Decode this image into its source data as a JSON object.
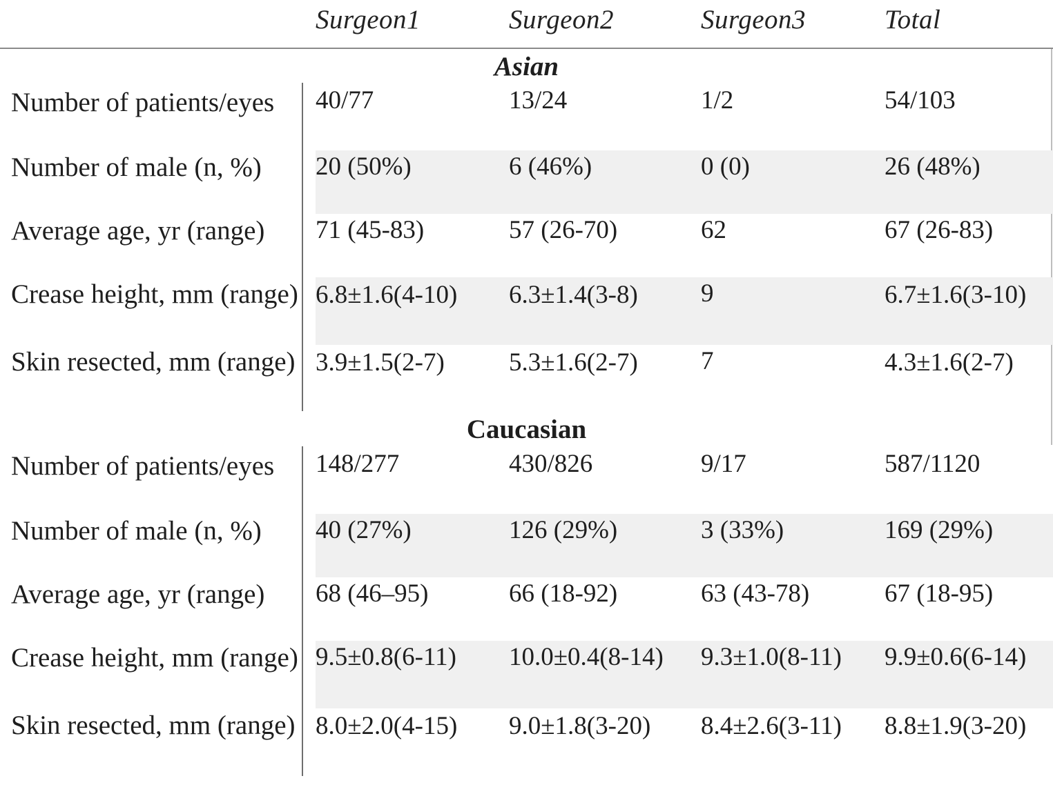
{
  "columns": [
    "Surgeon1",
    "Surgeon2",
    "Surgeon3",
    "Total"
  ],
  "groups": [
    {
      "title": "Asian",
      "rows": [
        {
          "label": "Number of patients/eyes",
          "values": [
            "40/77",
            "13/24",
            "1/2",
            "54/103"
          ]
        },
        {
          "label": "Number of male (n, %)",
          "values": [
            "20 (50%)",
            "6 (46%)",
            "0 (0)",
            "26 (48%)"
          ]
        },
        {
          "label": "Average age, yr (range)",
          "values": [
            "71 (45-83)",
            "57 (26-70)",
            "62",
            "67 (26-83)"
          ]
        },
        {
          "label": "Crease height, mm (range)",
          "values": [
            "6.8±1.6(4-10)",
            "6.3±1.4(3-8)",
            "9",
            "6.7±1.6(3-10)"
          ]
        },
        {
          "label": "Skin resected, mm (range)",
          "values": [
            "3.9±1.5(2-7)",
            "5.3±1.6(2-7)",
            "7",
            "4.3±1.6(2-7)"
          ]
        }
      ]
    },
    {
      "title": "Caucasian",
      "rows": [
        {
          "label": "Number of patients/eyes",
          "values": [
            "148/277",
            "430/826",
            "9/17",
            "587/1120"
          ]
        },
        {
          "label": "Number of male (n, %)",
          "values": [
            "40 (27%)",
            "126 (29%)",
            "3 (33%)",
            "169 (29%)"
          ]
        },
        {
          "label": "Average age, yr (range)",
          "values": [
            "68 (46–95)",
            "66 (18-92)",
            "63 (43-78)",
            "67 (18-95)"
          ]
        },
        {
          "label": "Crease height, mm (range)",
          "values": [
            "9.5±0.8(6-11)",
            "10.0±0.4(8-14)",
            "9.3±1.0(8-11)",
            "9.9±0.6(6-14)"
          ]
        },
        {
          "label": "Skin resected, mm (range)",
          "values": [
            "8.0±2.0(4-15)",
            "9.0±1.8(3-20)",
            "8.4±2.6(3-11)",
            "8.8±1.9(3-20)"
          ]
        }
      ]
    }
  ]
}
